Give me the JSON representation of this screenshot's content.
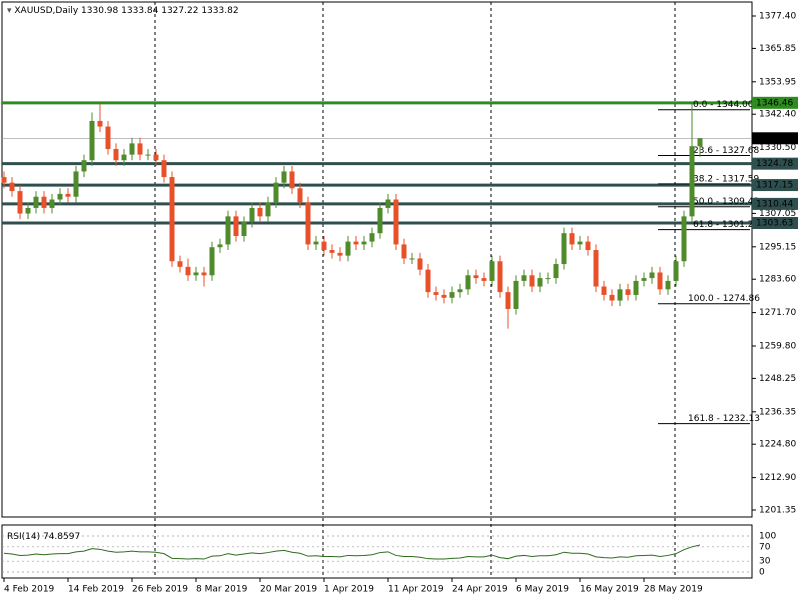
{
  "chart_data": {
    "type": "candlestick",
    "symbol": "XAUUSD,Daily",
    "ylim": [
      1198.86,
      1382.39
    ],
    "yticks": [
      {
        "value": 1377.4,
        "label": "1377.40"
      },
      {
        "value": 1365.85,
        "label": "1365.85"
      },
      {
        "value": 1353.95,
        "label": "1353.95"
      },
      {
        "value": 1342.4,
        "label": "1342.40"
      },
      {
        "value": 1330.5,
        "label": "1330.50"
      },
      {
        "value": 1307.05,
        "label": "1307.05"
      },
      {
        "value": 1295.15,
        "label": "1295.15"
      },
      {
        "value": 1283.6,
        "label": "1283.60"
      },
      {
        "value": 1271.7,
        "label": "1271.70"
      },
      {
        "value": 1259.8,
        "label": "1259.80"
      },
      {
        "value": 1248.25,
        "label": "1248.25"
      },
      {
        "value": 1236.35,
        "label": "1236.35"
      },
      {
        "value": 1224.8,
        "label": "1224.80"
      },
      {
        "value": 1212.9,
        "label": "1212.90"
      },
      {
        "value": 1201.35,
        "label": "1201.35"
      }
    ],
    "up_color": "#4f8a2b",
    "down_color": "#e8502a",
    "categories": [
      "4 Feb 2019",
      null,
      null,
      null,
      null,
      null,
      null,
      null,
      "14 Feb 2019",
      null,
      null,
      null,
      null,
      null,
      null,
      null,
      "26 Feb 2019",
      null,
      null,
      null,
      null,
      null,
      null,
      null,
      "8 Mar 2019",
      null,
      null,
      null,
      null,
      null,
      null,
      null,
      "20 Mar 2019",
      null,
      null,
      null,
      null,
      null,
      null,
      null,
      "1 Apr 2019",
      null,
      null,
      null,
      null,
      null,
      null,
      null,
      "11 Apr 2019",
      null,
      null,
      null,
      null,
      null,
      null,
      null,
      "24 Apr 2019",
      null,
      null,
      null,
      null,
      null,
      null,
      null,
      "6 May 2019",
      null,
      null,
      null,
      null,
      null,
      null,
      null,
      "16 May 2019",
      null,
      null,
      null,
      null,
      null,
      null,
      null,
      "28 May 2019",
      null,
      null,
      null,
      null,
      null,
      null,
      null
    ],
    "candles": [
      [
        1320,
        1322,
        1316,
        1318
      ],
      [
        1318,
        1320,
        1313,
        1315
      ],
      [
        1315,
        1317,
        1305,
        1307
      ],
      [
        1307,
        1311,
        1305,
        1309
      ],
      [
        1309,
        1315,
        1307,
        1313
      ],
      [
        1313,
        1315,
        1307,
        1309
      ],
      [
        1309,
        1314,
        1307,
        1312
      ],
      [
        1312,
        1316,
        1310,
        1314
      ],
      [
        1314,
        1316,
        1311,
        1313
      ],
      [
        1313,
        1324,
        1311,
        1322
      ],
      [
        1322,
        1328,
        1320,
        1326
      ],
      [
        1326,
        1343,
        1324,
        1340
      ],
      [
        1340,
        1346,
        1336,
        1338
      ],
      [
        1338,
        1340,
        1328,
        1330
      ],
      [
        1330,
        1332,
        1324,
        1326
      ],
      [
        1326,
        1330,
        1324,
        1328
      ],
      [
        1328,
        1334,
        1326,
        1332
      ],
      [
        1332,
        1334,
        1326,
        1328
      ],
      [
        1328,
        1330,
        1326,
        1328
      ],
      [
        1328,
        1330,
        1324,
        1326
      ],
      [
        1326,
        1328,
        1318,
        1320
      ],
      [
        1320,
        1322,
        1288,
        1290
      ],
      [
        1290,
        1292,
        1286,
        1288
      ],
      [
        1288,
        1291,
        1283,
        1285
      ],
      [
        1285,
        1288,
        1283,
        1286
      ],
      [
        1286,
        1288,
        1281,
        1285
      ],
      [
        1285,
        1297,
        1283,
        1295
      ],
      [
        1295,
        1298,
        1293,
        1296
      ],
      [
        1296,
        1308,
        1294,
        1306
      ],
      [
        1306,
        1308,
        1297,
        1299
      ],
      [
        1299,
        1306,
        1297,
        1304
      ],
      [
        1304,
        1311,
        1302,
        1309
      ],
      [
        1309,
        1311,
        1304,
        1306
      ],
      [
        1306,
        1313,
        1304,
        1311
      ],
      [
        1311,
        1320,
        1309,
        1318
      ],
      [
        1318,
        1324,
        1316,
        1322
      ],
      [
        1322,
        1324,
        1314,
        1316
      ],
      [
        1316,
        1318,
        1309,
        1311
      ],
      [
        1311,
        1313,
        1294,
        1296
      ],
      [
        1296,
        1299,
        1294,
        1297
      ],
      [
        1297,
        1299,
        1292,
        1294
      ],
      [
        1294,
        1296,
        1291,
        1293
      ],
      [
        1293,
        1295,
        1290,
        1292
      ],
      [
        1292,
        1299,
        1290,
        1297
      ],
      [
        1297,
        1299,
        1294,
        1296
      ],
      [
        1296,
        1299,
        1294,
        1297
      ],
      [
        1297,
        1302,
        1295,
        1300
      ],
      [
        1300,
        1311,
        1298,
        1309
      ],
      [
        1309,
        1314,
        1307,
        1312
      ],
      [
        1312,
        1314,
        1294,
        1296
      ],
      [
        1296,
        1298,
        1289,
        1291
      ],
      [
        1291,
        1293,
        1289,
        1291
      ],
      [
        1291,
        1293,
        1285,
        1287
      ],
      [
        1287,
        1289,
        1277,
        1279
      ],
      [
        1279,
        1281,
        1276,
        1278
      ],
      [
        1278,
        1280,
        1275,
        1277
      ],
      [
        1277,
        1281,
        1275,
        1279
      ],
      [
        1279,
        1282,
        1277,
        1280
      ],
      [
        1280,
        1287,
        1278,
        1285
      ],
      [
        1285,
        1287,
        1282,
        1284
      ],
      [
        1284,
        1286,
        1281,
        1283
      ],
      [
        1283,
        1292,
        1281,
        1290
      ],
      [
        1290,
        1292,
        1277,
        1279
      ],
      [
        1279,
        1281,
        1266,
        1273
      ],
      [
        1273,
        1285,
        1271,
        1283
      ],
      [
        1283,
        1287,
        1281,
        1285
      ],
      [
        1285,
        1287,
        1279,
        1281
      ],
      [
        1281,
        1286,
        1279,
        1284
      ],
      [
        1284,
        1286,
        1282,
        1284
      ],
      [
        1284,
        1291,
        1282,
        1289
      ],
      [
        1289,
        1302,
        1287,
        1300
      ],
      [
        1300,
        1302,
        1294,
        1296
      ],
      [
        1296,
        1299,
        1294,
        1297
      ],
      [
        1297,
        1299,
        1292,
        1294
      ],
      [
        1294,
        1296,
        1279,
        1281
      ],
      [
        1281,
        1283,
        1276,
        1278
      ],
      [
        1278,
        1280,
        1274,
        1276
      ],
      [
        1276,
        1282,
        1274,
        1280
      ],
      [
        1280,
        1282,
        1276,
        1278
      ],
      [
        1278,
        1285,
        1276,
        1283
      ],
      [
        1283,
        1286,
        1281,
        1284
      ],
      [
        1284,
        1288,
        1282,
        1286
      ],
      [
        1286,
        1288,
        1278,
        1280
      ],
      [
        1280,
        1285,
        1278,
        1283
      ],
      [
        1283,
        1292,
        1281,
        1290
      ],
      [
        1290,
        1308,
        1288,
        1306
      ],
      [
        1306,
        1346,
        1304,
        1331
      ],
      [
        1330.98,
        1333.84,
        1327.22,
        1333.82
      ]
    ],
    "price_levels": [
      {
        "value": 1346.46,
        "color": "#2e8b1f"
      },
      {
        "value": 1324.78,
        "color": "#2f4f4f"
      },
      {
        "value": 1317.15,
        "color": "#2f4f4f"
      },
      {
        "value": 1310.44,
        "color": "#2f4f4f"
      },
      {
        "value": 1303.63,
        "color": "#2f4f4f"
      }
    ],
    "current_color": "#000000",
    "fibo": [
      {
        "value": 1344.0,
        "label": "0.0 - 1344.00"
      },
      {
        "value": 1327.68,
        "label": "23.6 - 1327.68"
      },
      {
        "value": 1317.59,
        "label": "38.2 - 1317.59"
      },
      {
        "value": 1309.43,
        "label": "50.0 - 1309.43"
      },
      {
        "value": 1301.27,
        "label": "61.8 - 1301.27"
      },
      {
        "value": 1274.86,
        "label": "100.0 - 1274.86"
      },
      {
        "value": 1232.13,
        "label": "161.8 - 1232.13"
      }
    ],
    "rsi": {
      "name": "RSI(14)",
      "color": "#2e6b1f",
      "ylim": [
        0,
        100
      ],
      "yticks": [
        100,
        70,
        30,
        0
      ],
      "values": [
        52,
        50,
        46,
        47,
        50,
        48,
        50,
        51,
        51,
        56,
        58,
        65,
        63,
        58,
        55,
        56,
        58,
        56,
        56,
        55,
        51,
        38,
        37,
        36,
        37,
        36,
        44,
        45,
        51,
        47,
        50,
        53,
        51,
        54,
        58,
        60,
        55,
        52,
        44,
        45,
        43,
        43,
        42,
        46,
        45,
        46,
        48,
        54,
        56,
        46,
        43,
        43,
        41,
        37,
        36,
        36,
        38,
        39,
        43,
        42,
        42,
        47,
        40,
        37,
        44,
        46,
        43,
        45,
        45,
        48,
        55,
        52,
        52,
        50,
        42,
        40,
        39,
        42,
        41,
        45,
        46,
        47,
        43,
        46,
        51,
        62,
        70,
        74.8597
      ]
    }
  }
}
